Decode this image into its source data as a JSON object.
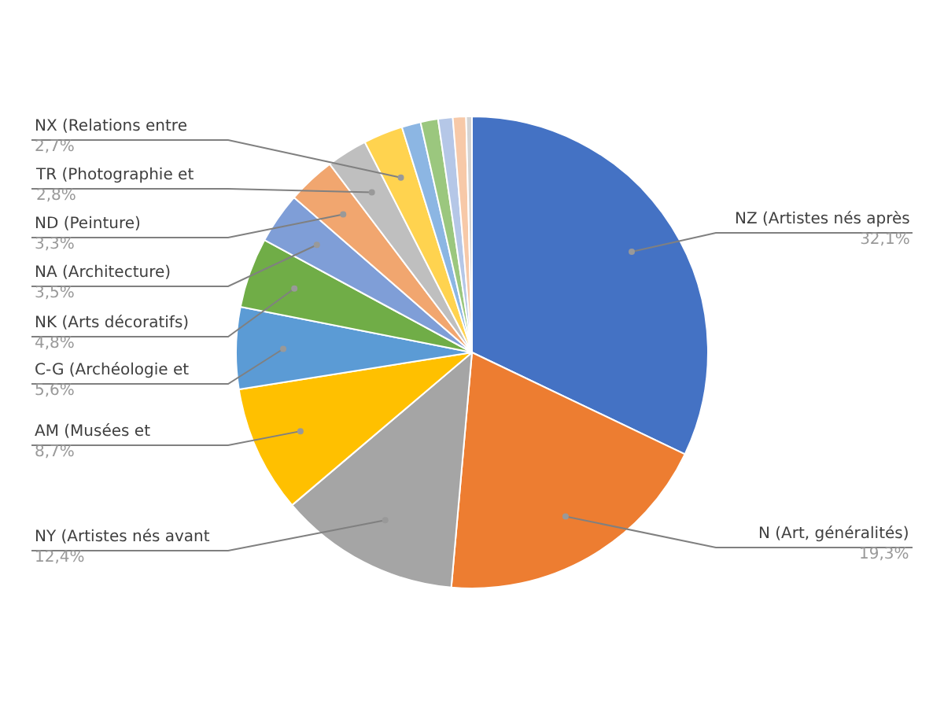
{
  "chart_data": {
    "type": "pie",
    "categories": [
      "NZ (Artistes nés après",
      "N (Art, généralités)",
      "NY (Artistes nés avant",
      "AM (Musées et",
      "C-G (Archéologie et",
      "NK (Arts décoratifs)",
      "NA (Architecture)",
      "ND (Peinture)",
      "TR (Photographie et",
      "NX (Relations entre",
      null,
      null,
      null,
      null,
      null
    ],
    "values": [
      32.1,
      19.3,
      12.4,
      8.7,
      5.6,
      4.8,
      3.5,
      3.3,
      2.8,
      2.7,
      1.3,
      1.2,
      1.0,
      0.9,
      0.4
    ],
    "value_labels": [
      "32,1%",
      "19,3%",
      "12,4%",
      "8,7%",
      "5,6%",
      "4,8%",
      "3,5%",
      "3,3%",
      "2,8%",
      "2,7%",
      null,
      null,
      null,
      null,
      null
    ],
    "colors": [
      "#4472c4",
      "#ed7d31",
      "#a5a5a5",
      "#ffc000",
      "#5b9bd5",
      "#70ad47",
      "#7f9ed7",
      "#f1a66f",
      "#bfbfbf",
      "#ffd34f",
      "#8cb6e3",
      "#9bc77e",
      "#b5c7e7",
      "#f7c9a8",
      "#d4d4d4"
    ]
  }
}
